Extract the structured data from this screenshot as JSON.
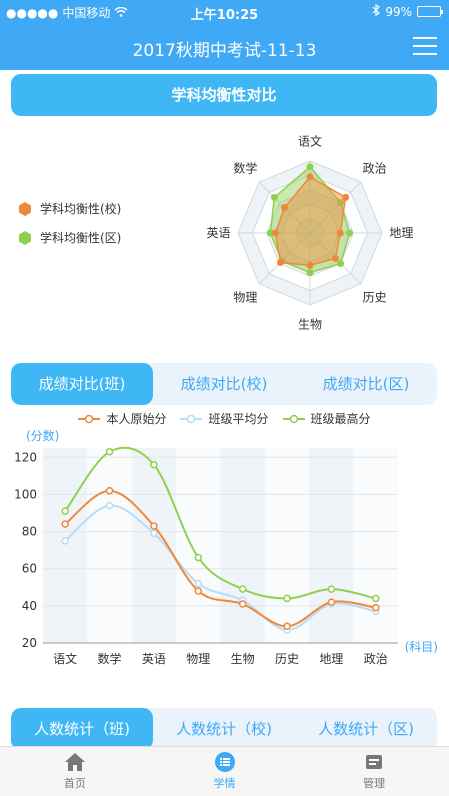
{
  "status": {
    "carrier": "中国移动",
    "time": "上午10:25",
    "battery": "99%"
  },
  "nav": {
    "title": "2017秋期中考试-11-13"
  },
  "balance_section": {
    "title": "学科均衡性对比"
  },
  "radar": {
    "axes": [
      "语文",
      "政治",
      "地理",
      "历史",
      "生物",
      "物理",
      "英语",
      "数学"
    ],
    "legend": [
      "学科均衡性(校)",
      "学科均衡性(区)"
    ],
    "colors": {
      "school": "#f0883a",
      "district": "#8fd14f"
    },
    "school": [
      0.78,
      0.7,
      0.42,
      0.5,
      0.45,
      0.58,
      0.48,
      0.5
    ],
    "district": [
      0.92,
      0.6,
      0.55,
      0.6,
      0.55,
      0.55,
      0.55,
      0.7
    ]
  },
  "compare_tabs": [
    "成绩对比(班)",
    "成绩对比(校)",
    "成绩对比(区)"
  ],
  "chart_data": {
    "type": "line",
    "categories": [
      "语文",
      "数学",
      "英语",
      "物理",
      "生物",
      "历史",
      "地理",
      "政治"
    ],
    "series": [
      {
        "name": "本人原始分",
        "color": "#f0883a",
        "values": [
          84,
          102,
          83,
          48,
          41,
          29,
          42,
          39
        ]
      },
      {
        "name": "班级平均分",
        "color": "#b9dcf5",
        "values": [
          75,
          94,
          79,
          52,
          43,
          27,
          41,
          37
        ]
      },
      {
        "name": "班级最高分",
        "color": "#8fd14f",
        "values": [
          91,
          123,
          116,
          66,
          49,
          44,
          49,
          44
        ]
      }
    ],
    "ylabel": "(分数)",
    "xlabel": "(科目)",
    "ylim": [
      20,
      125
    ],
    "yticks": [
      20,
      40,
      60,
      80,
      100,
      120
    ]
  },
  "count_tabs": [
    "人数统计（班)",
    "人数统计（校)",
    "人数统计（区)"
  ],
  "tabbar": [
    {
      "label": "首页",
      "icon": "home-icon"
    },
    {
      "label": "学情",
      "icon": "list-icon"
    },
    {
      "label": "管理",
      "icon": "manage-icon"
    }
  ],
  "accent": "#3fa9f5"
}
